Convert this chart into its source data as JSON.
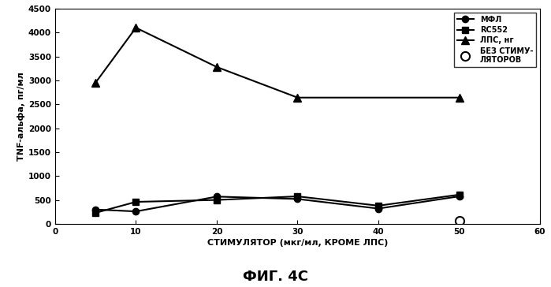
{
  "x_mfl": [
    5,
    10,
    20,
    30,
    40,
    50
  ],
  "y_mfl": [
    300,
    260,
    570,
    520,
    320,
    575
  ],
  "x_rc552": [
    5,
    10,
    20,
    30,
    40,
    50
  ],
  "y_rc552": [
    230,
    460,
    500,
    575,
    380,
    610
  ],
  "x_lps": [
    5,
    10,
    20,
    30,
    50
  ],
  "y_lps": [
    2950,
    4100,
    3280,
    2640,
    2640
  ],
  "x_nostim": [
    50
  ],
  "y_nostim": [
    60
  ],
  "xlabel": "СТИМУЛЯТОР (мкг/мл, КРОМЕ ЛПС)",
  "ylabel": "TNF-альфа, пг/мл",
  "legend_mfl": "МФЛ",
  "legend_rc552": "RC552",
  "legend_lps": "ЛПС, нг",
  "legend_nostim": "БЕЗ СТИМУ-\nЛЯТОРОВ",
  "title": "ФИГ. 4С",
  "xlim": [
    0,
    60
  ],
  "ylim": [
    0,
    4500
  ],
  "yticks": [
    0,
    500,
    1000,
    1500,
    2000,
    2500,
    3000,
    3500,
    4000,
    4500
  ],
  "xticks": [
    0,
    10,
    20,
    30,
    40,
    50,
    60
  ],
  "line_color": "#000000",
  "bg_color": "#ffffff"
}
